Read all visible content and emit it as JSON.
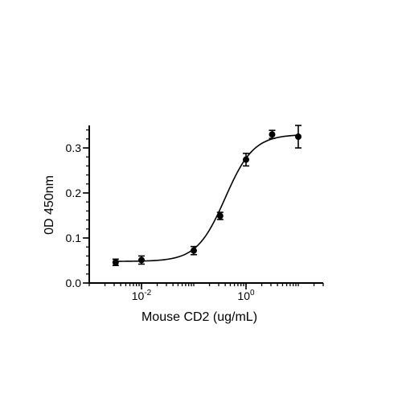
{
  "chart_data": {
    "type": "scatter",
    "title": "",
    "xlabel": "Mouse CD2 (ug/mL)",
    "ylabel": "0D 450nm",
    "x_scale": "log10",
    "xlim": [
      0.001,
      30
    ],
    "ylim": [
      0,
      0.35
    ],
    "x_ticks": [
      {
        "value": 0.01,
        "base": "10",
        "exp": "-2"
      },
      {
        "value": 1,
        "base": "10",
        "exp": "0"
      }
    ],
    "y_ticks": [
      {
        "value": 0.0,
        "label": "0.0"
      },
      {
        "value": 0.1,
        "label": "0.1"
      },
      {
        "value": 0.2,
        "label": "0.2"
      },
      {
        "value": 0.3,
        "label": "0.3"
      }
    ],
    "y_minor_step": 0.02,
    "series": [
      {
        "points": [
          {
            "x": 0.0032,
            "y": 0.046,
            "err": 0.007
          },
          {
            "x": 0.01,
            "y": 0.051,
            "err": 0.009
          },
          {
            "x": 0.1,
            "y": 0.072,
            "err": 0.009
          },
          {
            "x": 0.32,
            "y": 0.149,
            "err": 0.008
          },
          {
            "x": 1.0,
            "y": 0.274,
            "err": 0.014
          },
          {
            "x": 3.16,
            "y": 0.33,
            "err": 0.009
          },
          {
            "x": 10.0,
            "y": 0.325,
            "err": 0.025
          }
        ]
      }
    ],
    "fit": {
      "model": "4PL",
      "bottom": 0.048,
      "top": 0.33,
      "ec50": 0.4,
      "hill": 1.6
    },
    "grid": false,
    "legend": "none",
    "colors": {
      "marker": "#000000",
      "line": "#000000"
    }
  }
}
